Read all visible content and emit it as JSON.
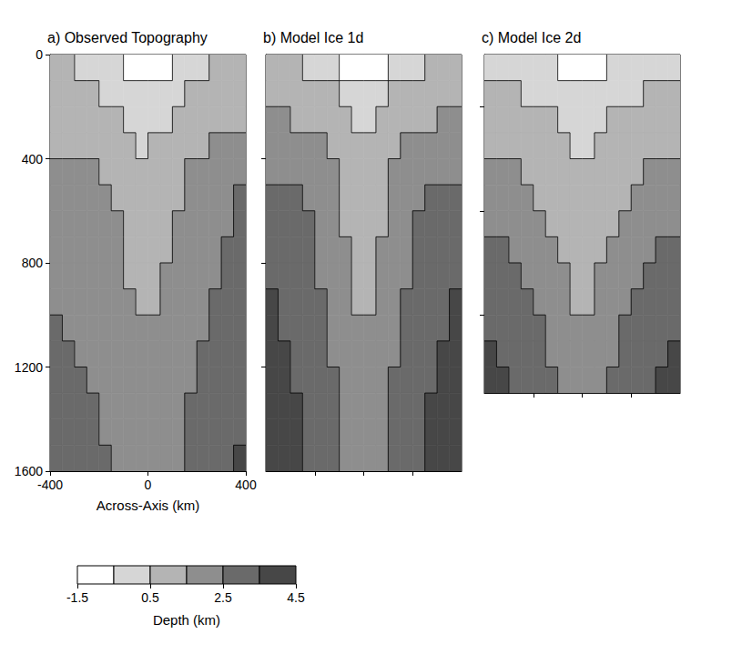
{
  "chart_data": [
    {
      "type": "heatmap",
      "title": "a) Observed Topography",
      "x_label": "Across-Axis (km)",
      "xlim": [
        -400,
        400
      ],
      "xticks": [
        -400,
        0,
        400
      ],
      "ylim": [
        0,
        1600
      ],
      "yticks": [
        0,
        400,
        800,
        1200,
        1600
      ],
      "x": [
        -375,
        -325,
        -275,
        -225,
        -175,
        -125,
        -75,
        -25,
        25,
        75,
        125,
        175,
        225,
        275,
        325,
        375
      ],
      "y": [
        50,
        150,
        250,
        350,
        450,
        550,
        650,
        750,
        850,
        950,
        1050,
        1150,
        1250,
        1350,
        1450,
        1550
      ],
      "cells": [
        [
          0.6,
          0.5,
          0.4,
          0.3,
          0.2,
          0.0,
          -0.6,
          -0.8,
          -0.9,
          -0.7,
          -0.2,
          0.3,
          0.4,
          0.6,
          0.7,
          0.8
        ],
        [
          0.8,
          0.7,
          0.6,
          0.5,
          0.4,
          0.3,
          0.0,
          -0.3,
          -0.2,
          0.2,
          0.4,
          0.6,
          0.7,
          0.9,
          1.0,
          1.1
        ],
        [
          0.9,
          0.8,
          0.8,
          0.7,
          0.6,
          0.5,
          0.3,
          0.1,
          0.2,
          0.4,
          0.6,
          0.8,
          1.0,
          1.1,
          1.3,
          1.4
        ],
        [
          1.0,
          1.0,
          0.9,
          0.9,
          0.8,
          0.7,
          0.6,
          0.4,
          0.5,
          0.7,
          0.9,
          1.1,
          1.3,
          1.5,
          1.6,
          1.7
        ],
        [
          1.8,
          1.7,
          1.6,
          1.5,
          1.3,
          1.1,
          0.8,
          0.6,
          0.7,
          0.9,
          1.2,
          1.5,
          1.7,
          1.9,
          2.0,
          2.2
        ],
        [
          2.0,
          1.9,
          1.8,
          1.7,
          1.6,
          1.3,
          1.0,
          0.8,
          0.9,
          1.1,
          1.4,
          1.7,
          1.9,
          2.1,
          2.3,
          2.5
        ],
        [
          2.1,
          2.0,
          2.0,
          1.9,
          1.7,
          1.5,
          1.1,
          0.9,
          1.0,
          1.2,
          1.6,
          1.8,
          2.0,
          2.2,
          2.4,
          2.6
        ],
        [
          2.2,
          2.1,
          2.1,
          2.0,
          1.8,
          1.6,
          1.3,
          1.0,
          1.1,
          1.4,
          1.7,
          1.9,
          2.1,
          2.3,
          2.5,
          2.7
        ],
        [
          2.3,
          2.2,
          2.1,
          2.0,
          1.9,
          1.7,
          1.4,
          1.2,
          1.2,
          1.5,
          1.8,
          2.0,
          2.2,
          2.4,
          2.6,
          2.8
        ],
        [
          2.4,
          2.3,
          2.2,
          2.1,
          2.0,
          1.8,
          1.5,
          1.3,
          1.3,
          1.6,
          1.9,
          2.1,
          2.3,
          2.5,
          2.7,
          2.9
        ],
        [
          2.5,
          2.4,
          2.3,
          2.2,
          2.1,
          1.9,
          1.7,
          1.5,
          1.5,
          1.7,
          2.0,
          2.2,
          2.4,
          2.6,
          2.8,
          3.0
        ],
        [
          2.6,
          2.5,
          2.4,
          2.3,
          2.2,
          2.0,
          1.8,
          1.6,
          1.6,
          1.8,
          2.1,
          2.3,
          2.5,
          2.7,
          2.9,
          3.1
        ],
        [
          2.8,
          2.7,
          2.6,
          2.4,
          2.3,
          2.1,
          1.9,
          1.7,
          1.7,
          1.9,
          2.2,
          2.4,
          2.6,
          2.8,
          3.0,
          3.2
        ],
        [
          3.0,
          2.9,
          2.7,
          2.5,
          2.4,
          2.2,
          2.0,
          1.8,
          1.8,
          2.0,
          2.3,
          2.5,
          2.7,
          2.9,
          3.1,
          3.3
        ],
        [
          3.1,
          3.0,
          2.8,
          2.6,
          2.4,
          2.2,
          2.0,
          1.8,
          1.9,
          2.1,
          2.3,
          2.6,
          2.8,
          3.0,
          3.2,
          3.4
        ],
        [
          3.2,
          3.0,
          2.9,
          2.7,
          2.5,
          2.3,
          2.1,
          1.9,
          1.9,
          2.1,
          2.4,
          2.6,
          2.9,
          3.1,
          3.3,
          3.5
        ]
      ]
    },
    {
      "type": "heatmap",
      "title": "b) Model Ice 1d",
      "tick_labels": false,
      "xlim": [
        -400,
        400
      ],
      "xticks": [
        -200,
        0,
        200
      ],
      "ylim": [
        0,
        1600
      ],
      "yticks": [
        400,
        800,
        1200
      ],
      "x": [
        -375,
        -325,
        -275,
        -225,
        -175,
        -125,
        -75,
        -25,
        25,
        75,
        125,
        175,
        225,
        275,
        325,
        375
      ],
      "y": [
        50,
        150,
        250,
        350,
        450,
        550,
        650,
        750,
        850,
        950,
        1050,
        1150,
        1250,
        1350,
        1450,
        1550
      ],
      "cells": [
        [
          0.7,
          0.6,
          0.5,
          0.3,
          0.1,
          -0.3,
          -0.7,
          -1.0,
          -1.0,
          -0.7,
          -0.3,
          0.1,
          0.3,
          0.5,
          0.6,
          0.7
        ],
        [
          1.2,
          1.1,
          1.0,
          0.9,
          0.7,
          0.5,
          0.2,
          -0.3,
          -0.3,
          0.2,
          0.5,
          0.7,
          0.9,
          1.0,
          1.1,
          1.2
        ],
        [
          1.6,
          1.5,
          1.4,
          1.3,
          1.1,
          0.9,
          0.6,
          0.2,
          0.2,
          0.6,
          0.9,
          1.1,
          1.3,
          1.4,
          1.5,
          1.6
        ],
        [
          2.0,
          1.9,
          1.8,
          1.7,
          1.5,
          1.2,
          0.9,
          0.5,
          0.5,
          0.9,
          1.2,
          1.5,
          1.7,
          1.8,
          1.9,
          2.0
        ],
        [
          2.4,
          2.3,
          2.2,
          2.0,
          1.8,
          1.5,
          1.1,
          0.7,
          0.7,
          1.1,
          1.5,
          1.8,
          2.0,
          2.2,
          2.3,
          2.4
        ],
        [
          2.7,
          2.6,
          2.5,
          2.3,
          2.0,
          1.7,
          1.3,
          0.9,
          0.9,
          1.3,
          1.7,
          2.0,
          2.3,
          2.5,
          2.6,
          2.7
        ],
        [
          3.0,
          2.9,
          2.7,
          2.5,
          2.2,
          1.8,
          1.4,
          1.0,
          1.0,
          1.4,
          1.8,
          2.2,
          2.5,
          2.7,
          2.9,
          3.0
        ],
        [
          3.2,
          3.1,
          2.9,
          2.6,
          2.3,
          2.0,
          1.6,
          1.2,
          1.2,
          1.6,
          2.0,
          2.3,
          2.6,
          2.9,
          3.1,
          3.2
        ],
        [
          3.4,
          3.2,
          3.0,
          2.7,
          2.4,
          2.1,
          1.7,
          1.3,
          1.3,
          1.7,
          2.1,
          2.4,
          2.7,
          3.0,
          3.2,
          3.4
        ],
        [
          3.5,
          3.3,
          3.1,
          2.8,
          2.5,
          2.2,
          1.8,
          1.4,
          1.4,
          1.8,
          2.2,
          2.5,
          2.8,
          3.1,
          3.3,
          3.5
        ],
        [
          3.6,
          3.4,
          3.2,
          2.9,
          2.6,
          2.3,
          1.9,
          1.5,
          1.5,
          1.9,
          2.3,
          2.6,
          2.9,
          3.2,
          3.4,
          3.6
        ],
        [
          3.7,
          3.5,
          3.3,
          3.0,
          2.7,
          2.4,
          2.0,
          1.6,
          1.6,
          2.0,
          2.4,
          2.7,
          3.0,
          3.3,
          3.5,
          3.7
        ],
        [
          3.8,
          3.6,
          3.4,
          3.1,
          2.8,
          2.5,
          2.1,
          1.7,
          1.7,
          2.1,
          2.5,
          2.8,
          3.1,
          3.4,
          3.6,
          3.8
        ],
        [
          3.9,
          3.7,
          3.5,
          3.2,
          2.9,
          2.6,
          2.2,
          1.8,
          1.8,
          2.2,
          2.6,
          2.9,
          3.2,
          3.5,
          3.7,
          3.9
        ],
        [
          4.0,
          3.8,
          3.5,
          3.3,
          3.0,
          2.6,
          2.3,
          1.8,
          1.8,
          2.3,
          2.6,
          3.0,
          3.3,
          3.5,
          3.8,
          4.0
        ],
        [
          4.0,
          3.8,
          3.6,
          3.3,
          3.0,
          2.7,
          2.3,
          1.9,
          1.9,
          2.3,
          2.7,
          3.0,
          3.3,
          3.6,
          3.8,
          4.0
        ]
      ]
    },
    {
      "type": "heatmap",
      "title": "c) Model Ice 2d",
      "tick_labels": false,
      "xlim": [
        -400,
        400
      ],
      "xticks": [
        -200,
        0,
        200
      ],
      "ylim": [
        0,
        1300
      ],
      "yticks": [
        200,
        600,
        1000
      ],
      "x": [
        -375,
        -325,
        -275,
        -225,
        -175,
        -125,
        -75,
        -25,
        25,
        75,
        125,
        175,
        225,
        275,
        325,
        375
      ],
      "y": [
        50,
        150,
        250,
        350,
        450,
        550,
        650,
        750,
        850,
        950,
        1050,
        1150,
        1250
      ],
      "cells": [
        [
          0.4,
          0.3,
          0.2,
          0.1,
          0.0,
          -0.2,
          -0.6,
          -0.9,
          -0.9,
          -0.6,
          -0.2,
          0.0,
          0.1,
          0.2,
          0.3,
          0.4
        ],
        [
          0.7,
          0.6,
          0.5,
          0.4,
          0.3,
          0.2,
          0.0,
          -0.3,
          -0.3,
          0.0,
          0.2,
          0.3,
          0.4,
          0.5,
          0.6,
          0.7
        ],
        [
          1.0,
          0.9,
          0.8,
          0.7,
          0.6,
          0.5,
          0.3,
          0.1,
          0.1,
          0.3,
          0.5,
          0.6,
          0.7,
          0.8,
          0.9,
          1.0
        ],
        [
          1.3,
          1.2,
          1.1,
          1.0,
          0.9,
          0.7,
          0.5,
          0.3,
          0.3,
          0.5,
          0.7,
          0.9,
          1.0,
          1.1,
          1.2,
          1.3
        ],
        [
          1.7,
          1.6,
          1.5,
          1.3,
          1.1,
          0.9,
          0.7,
          0.5,
          0.5,
          0.7,
          0.9,
          1.1,
          1.3,
          1.5,
          1.6,
          1.7
        ],
        [
          2.1,
          2.0,
          1.8,
          1.6,
          1.4,
          1.2,
          0.9,
          0.7,
          0.7,
          0.9,
          1.2,
          1.4,
          1.6,
          1.8,
          2.0,
          2.1
        ],
        [
          2.4,
          2.3,
          2.1,
          1.9,
          1.7,
          1.4,
          1.1,
          0.9,
          0.9,
          1.1,
          1.4,
          1.7,
          1.9,
          2.1,
          2.3,
          2.4
        ],
        [
          2.7,
          2.6,
          2.4,
          2.2,
          1.9,
          1.6,
          1.3,
          1.0,
          1.0,
          1.3,
          1.6,
          1.9,
          2.2,
          2.4,
          2.6,
          2.7
        ],
        [
          2.9,
          2.8,
          2.6,
          2.4,
          2.1,
          1.8,
          1.5,
          1.2,
          1.2,
          1.5,
          1.8,
          2.1,
          2.4,
          2.6,
          2.8,
          2.9
        ],
        [
          3.1,
          3.0,
          2.8,
          2.6,
          2.3,
          2.0,
          1.7,
          1.4,
          1.4,
          1.7,
          2.0,
          2.3,
          2.6,
          2.8,
          3.0,
          3.1
        ],
        [
          3.3,
          3.2,
          3.0,
          2.8,
          2.5,
          2.2,
          1.8,
          1.5,
          1.5,
          1.8,
          2.2,
          2.5,
          2.8,
          3.0,
          3.2,
          3.3
        ],
        [
          3.5,
          3.4,
          3.2,
          3.0,
          2.7,
          2.4,
          2.0,
          1.6,
          1.6,
          2.0,
          2.4,
          2.7,
          3.0,
          3.2,
          3.4,
          3.5
        ],
        [
          3.6,
          3.5,
          3.3,
          3.1,
          2.8,
          2.5,
          2.1,
          1.7,
          1.7,
          2.1,
          2.5,
          2.8,
          3.1,
          3.3,
          3.5,
          3.6
        ]
      ]
    }
  ],
  "colorbar": {
    "label": "Depth (km)",
    "range": [
      -1.5,
      4.5
    ],
    "ticks": [
      -1.5,
      0.5,
      2.5,
      4.5
    ],
    "bounds": [
      -1.5,
      -0.5,
      0.5,
      1.5,
      2.5,
      3.5,
      4.5
    ],
    "colors": [
      "#ffffff",
      "#d6d6d6",
      "#b4b4b4",
      "#8e8e8e",
      "#6a6a6a",
      "#474747"
    ]
  }
}
